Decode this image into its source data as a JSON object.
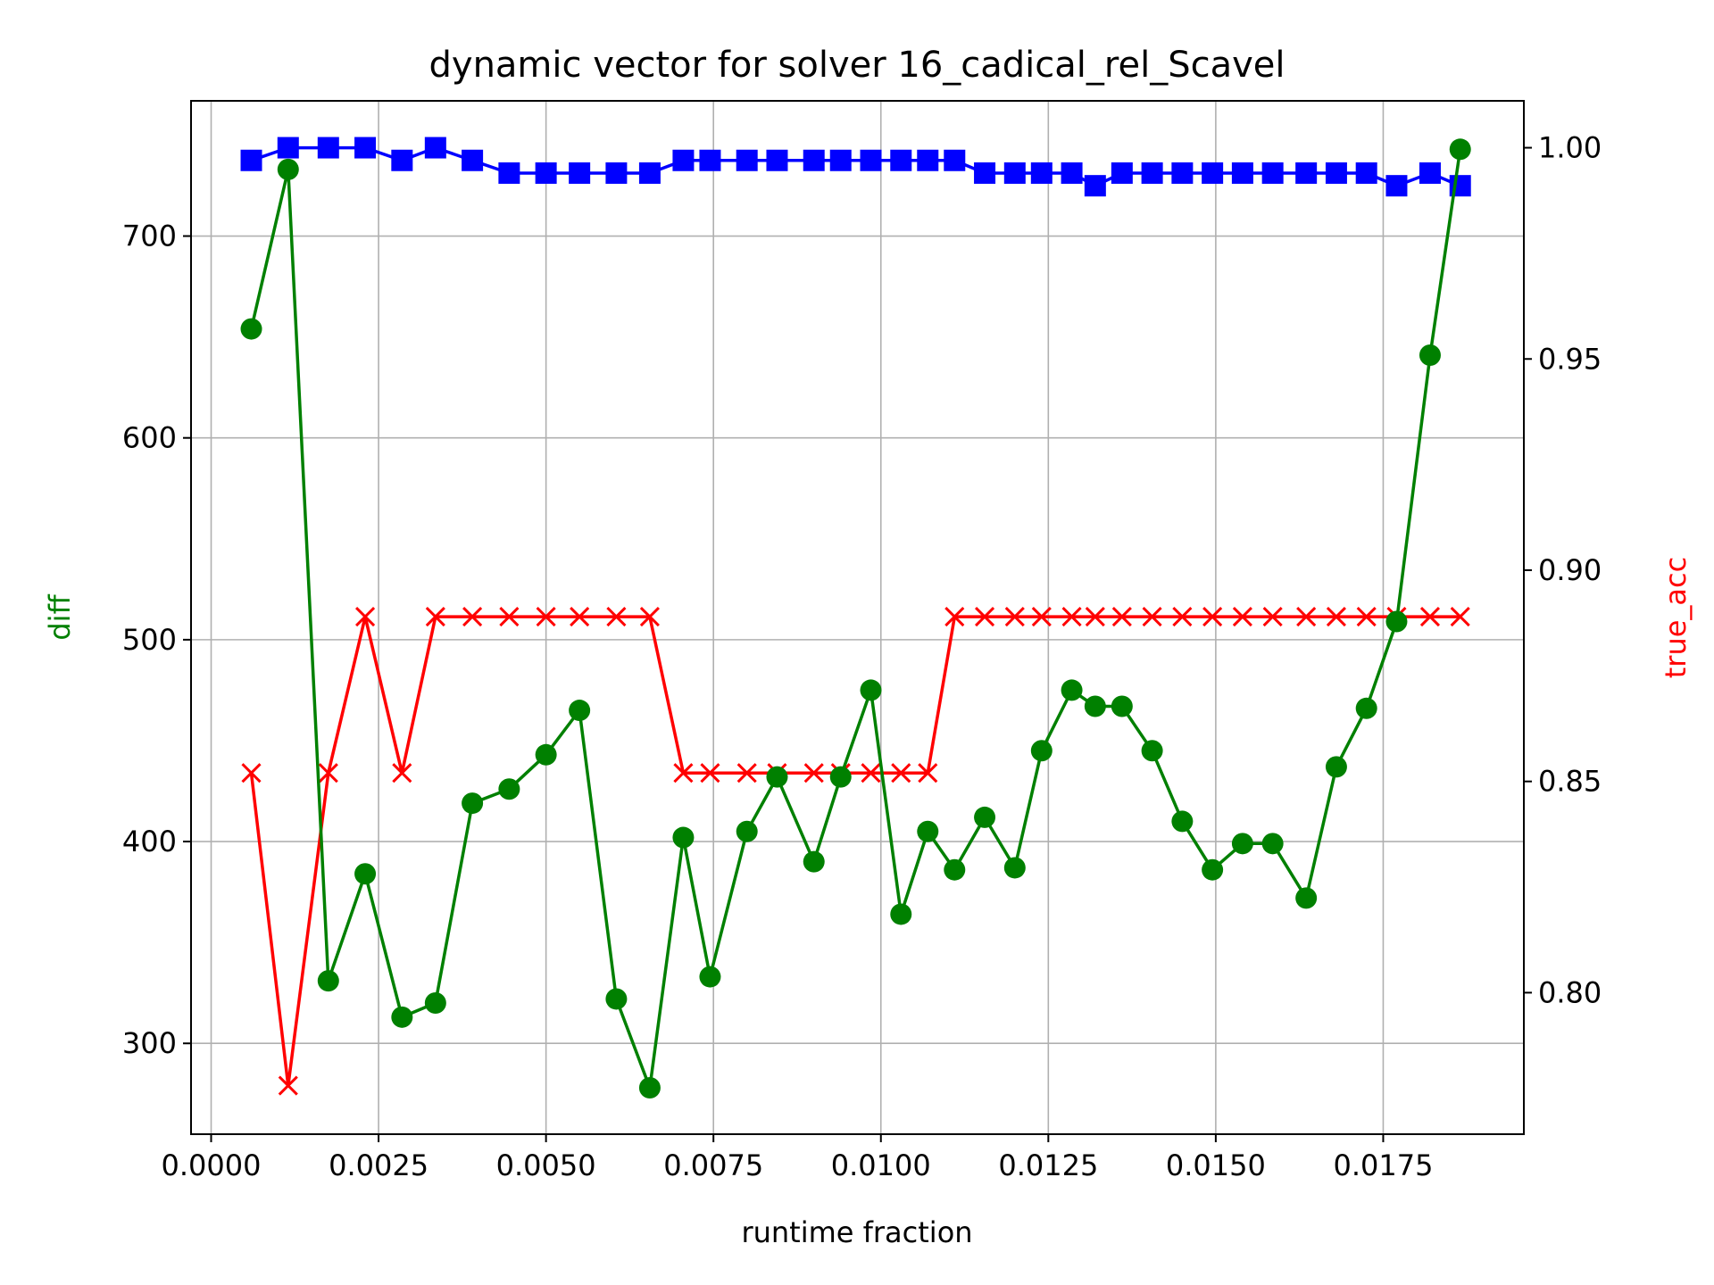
{
  "chart_data": {
    "type": "line",
    "title": "dynamic vector for solver 16_cadical_rel_Scavel",
    "xlabel": "runtime fraction",
    "ylabel_left": "diff",
    "ylabel_right": "true_acc",
    "xlim": [
      -0.0003,
      0.0196
    ],
    "ylim_left": [
      255,
      767
    ],
    "ylim_right": [
      0.7665,
      1.0111
    ],
    "x_ticks": [
      0.0,
      0.0025,
      0.005,
      0.0075,
      0.01,
      0.0125,
      0.015,
      0.0175
    ],
    "x_tick_labels": [
      "0.0000",
      "0.0025",
      "0.0050",
      "0.0075",
      "0.0100",
      "0.0125",
      "0.0150",
      "0.0175"
    ],
    "y_left_ticks": [
      300,
      400,
      500,
      600,
      700
    ],
    "y_left_tick_labels": [
      "300",
      "400",
      "500",
      "600",
      "700"
    ],
    "y_right_ticks": [
      0.8,
      0.85,
      0.9,
      0.95,
      1.0
    ],
    "y_right_tick_labels": [
      "0.80",
      "0.85",
      "0.90",
      "0.95",
      "1.00"
    ],
    "grid": true,
    "colors": {
      "diff": "#008000",
      "acc": "#0000ff",
      "true_acc": "#ff0000",
      "left_label": "#008000",
      "right_label": "#ff0000"
    },
    "x": [
      0.0006,
      0.00115,
      0.00175,
      0.0023,
      0.00285,
      0.00335,
      0.0039,
      0.00445,
      0.005,
      0.0055,
      0.00605,
      0.00655,
      0.00705,
      0.00745,
      0.008,
      0.00845,
      0.009,
      0.0094,
      0.00985,
      0.0103,
      0.0107,
      0.0111,
      0.01155,
      0.012,
      0.0124,
      0.01285,
      0.0132,
      0.0136,
      0.01405,
      0.0145,
      0.01495,
      0.0154,
      0.01585,
      0.01635,
      0.0168,
      0.01725,
      0.0177,
      0.0182,
      0.01865
    ],
    "series": [
      {
        "key": "diff",
        "axis": "left",
        "marker": "circle",
        "values": [
          654,
          733,
          331,
          384,
          313,
          320,
          419,
          426,
          443,
          465,
          322,
          278,
          402,
          333,
          405,
          432,
          390,
          432,
          475,
          364,
          405,
          386,
          412,
          387,
          445,
          475,
          467,
          467,
          445,
          410,
          386,
          399,
          399,
          372,
          437,
          466,
          509,
          641,
          743
        ]
      },
      {
        "key": "acc",
        "axis": "right",
        "marker": "square",
        "values": [
          0.997,
          1.0,
          1.0,
          1.0,
          0.997,
          1.0,
          0.997,
          0.994,
          0.994,
          0.994,
          0.994,
          0.994,
          0.997,
          0.997,
          0.997,
          0.997,
          0.997,
          0.997,
          0.997,
          0.997,
          0.997,
          0.997,
          0.994,
          0.994,
          0.994,
          0.994,
          0.991,
          0.994,
          0.994,
          0.994,
          0.994,
          0.994,
          0.994,
          0.994,
          0.994,
          0.994,
          0.991,
          0.994,
          0.991
        ]
      },
      {
        "key": "true_acc",
        "axis": "right",
        "marker": "x",
        "values": [
          0.852,
          0.778,
          0.852,
          0.889,
          0.852,
          0.889,
          0.889,
          0.889,
          0.889,
          0.889,
          0.889,
          0.889,
          0.852,
          0.852,
          0.852,
          0.852,
          0.852,
          0.852,
          0.852,
          0.852,
          0.852,
          0.889,
          0.889,
          0.889,
          0.889,
          0.889,
          0.889,
          0.889,
          0.889,
          0.889,
          0.889,
          0.889,
          0.889,
          0.889,
          0.889,
          0.889,
          0.889,
          0.889,
          0.889
        ]
      }
    ]
  }
}
